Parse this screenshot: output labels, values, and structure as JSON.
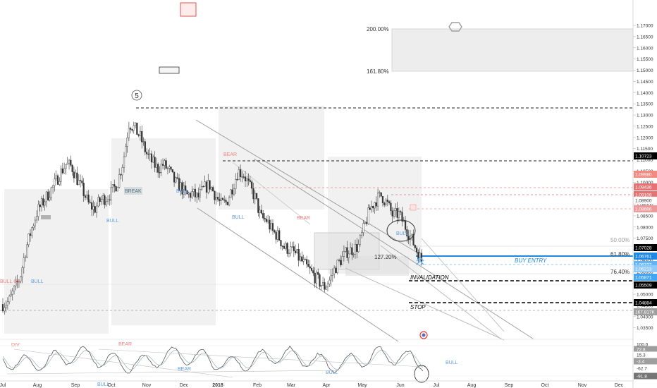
{
  "chart_data": {
    "type": "candlestick",
    "title": "",
    "xlabel": "",
    "ylabel": "",
    "ylim": [
      1.0305,
      1.1785
    ],
    "x_ticks": [
      "Jul",
      "Aug",
      "Sep",
      "Oct",
      "Nov",
      "Dec",
      "2018",
      "Feb",
      "Mar",
      "Apr",
      "May",
      "Jun",
      "Jul",
      "Aug",
      "Sep",
      "Oct",
      "Nov",
      "Dec"
    ],
    "y_ticks": [
      "1.17000",
      "1.16500",
      "1.16000",
      "1.15500",
      "1.15000",
      "1.14500",
      "1.14000",
      "1.13500",
      "1.13000",
      "1.12500",
      "1.12000",
      "1.11500",
      "1.11000",
      "1.10500",
      "1.10000",
      "1.09500",
      "1.09000",
      "1.08500",
      "1.08000",
      "1.07500",
      "1.07000",
      "1.06500",
      "1.06000",
      "1.05500",
      "1.05000",
      "1.04500",
      "1.04000",
      "1.03500"
    ],
    "close_path_y": [
      1.0455,
      1.0465,
      1.052,
      1.0575,
      1.07,
      1.079,
      1.087,
      1.091,
      1.095,
      1.099,
      1.104,
      1.108,
      1.107,
      1.101,
      1.096,
      1.09,
      1.088,
      1.092,
      1.093,
      1.0955,
      1.1,
      1.1095,
      1.1265,
      1.124,
      1.12,
      1.113,
      1.109,
      1.106,
      1.108,
      1.105,
      1.1,
      1.098,
      1.094,
      1.095,
      1.093,
      1.097,
      1.099,
      1.0945,
      1.09,
      1.091,
      1.0975,
      1.105,
      1.1035,
      1.098,
      1.093,
      1.084,
      1.083,
      1.078,
      1.076,
      1.071,
      1.07,
      1.068,
      1.065,
      1.062,
      1.059,
      1.056,
      1.053,
      1.0565,
      1.062,
      1.0655,
      1.069,
      1.07,
      1.0715,
      1.08,
      1.088,
      1.092,
      1.094,
      1.0905,
      1.085,
      1.086,
      1.081,
      1.076,
      1.0705,
      1.065
    ],
    "price_labels": [
      {
        "value": "1.10723",
        "color": "#000000",
        "fg": "#ffffff"
      },
      {
        "value": "1.09980",
        "color": "#f28b82",
        "fg": "#ffffff"
      },
      {
        "value": "1.09436",
        "color": "#e57373",
        "fg": "#ffffff"
      },
      {
        "value": "1.09109",
        "color": "#e57373",
        "fg": "#ffffff"
      },
      {
        "value": "1.08900",
        "color": "#ffffff",
        "fg": "#333333"
      },
      {
        "value": "1.08666",
        "color": "#ef9a9a",
        "fg": "#ffffff"
      },
      {
        "value": "1.07028",
        "color": "#000000",
        "fg": "#ffffff"
      },
      {
        "value": "1.06761",
        "color": "#1e88e5",
        "fg": "#ffffff"
      },
      {
        "value": "1.06372",
        "color": "#64b5f6",
        "fg": "#ffffff"
      },
      {
        "value": "1.06213",
        "color": "#90caf9",
        "fg": "#ffffff"
      },
      {
        "value": "1.05871",
        "color": "#42a5f5",
        "fg": "#ffffff"
      },
      {
        "value": "1.05509",
        "color": "#000000",
        "fg": "#ffffff"
      },
      {
        "value": "1.04884",
        "color": "#000000",
        "fg": "#ffffff"
      },
      {
        "value": "167.817K",
        "color": "#9e9e9e",
        "fg": "#ffffff"
      }
    ],
    "horizontal_levels": [
      {
        "label": "BUY ENTRY",
        "color": "#1e88e5"
      },
      {
        "label": "INVALIDATION",
        "color": "#000000"
      },
      {
        "label": "STOP",
        "color": "#000000"
      }
    ],
    "fib_labels": [
      "200.00%",
      "161.80%",
      "50.00%",
      "61.80%",
      "76.40%",
      "127.20%"
    ],
    "annotations": [
      "BULL",
      "BULL",
      "BREAK",
      "BULL",
      "BULL",
      "BEAR",
      "BEAR",
      "BULL",
      "BULL",
      "BULL OK",
      "BEAR",
      "BULL",
      "DIV",
      "5",
      "BEAR",
      "BULL"
    ],
    "oscillator": {
      "ticks": [
        "100.0",
        "72.8",
        "15.3",
        "-3.4",
        "-62.7",
        "-91.8"
      ]
    },
    "grid": false,
    "legend": "none"
  },
  "colors": {
    "bull_annotation": "#5c9ce6",
    "bear_annotation": "#f08080",
    "buy_entry": "#1e88e5",
    "zone_fill": "#ececec"
  }
}
